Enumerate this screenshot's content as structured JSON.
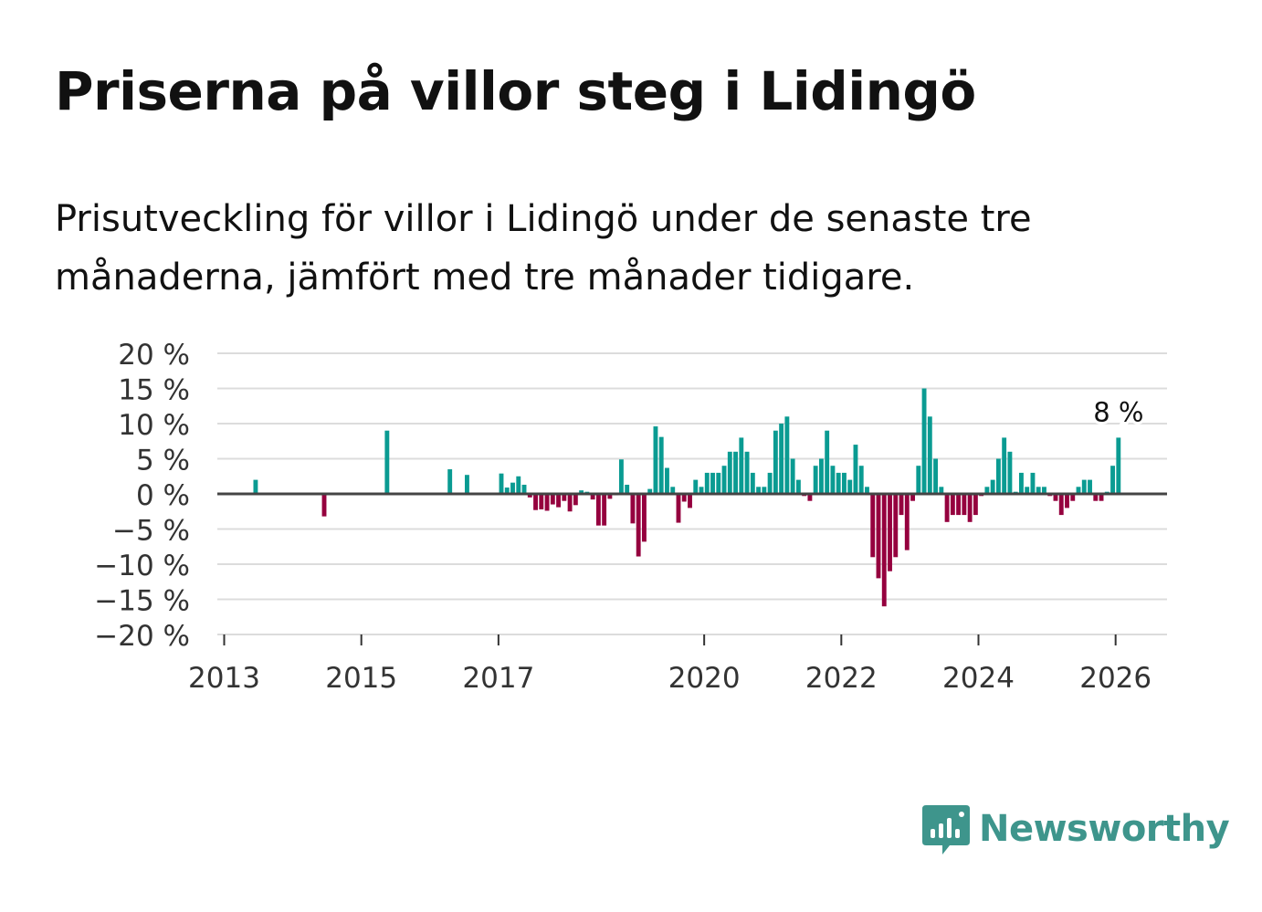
{
  "title": "Priserna på villor steg i Lidingö",
  "subtitle": "Prisutveckling för villor i Lidingö under de senaste tre månaderna, jämfört med tre månader tidigare.",
  "brand": {
    "name": "Newsworthy",
    "icon": "newsworthy-logo-icon",
    "color": "#3e958c"
  },
  "colors": {
    "positive": "#0a9b92",
    "negative": "#95003e",
    "grid": "#dcdcdc",
    "zero_line": "#444444"
  },
  "chart_data": {
    "type": "bar",
    "title": "Priserna på villor steg i Lidingö",
    "ylabel": "",
    "xlabel": "",
    "unit": "%",
    "ylim": [
      -20,
      20
    ],
    "yticks": [
      20,
      15,
      10,
      5,
      0,
      -5,
      -10,
      -15,
      -20
    ],
    "ytick_labels": [
      "20 %",
      "15 %",
      "10 %",
      "5 %",
      "0 %",
      "−5 %",
      "−10 %",
      "−15 %",
      "−20 %"
    ],
    "xlim": [
      2012.9,
      2026.75
    ],
    "xticks": [
      2013,
      2015,
      2017,
      2020,
      2022,
      2024,
      2026
    ],
    "xtick_labels": [
      "2013",
      "2015",
      "2017",
      "2020",
      "2022",
      "2024",
      "2026"
    ],
    "last_label": "8 %",
    "series": [
      {
        "name": "Prisutveckling",
        "x": [
          "2013-06",
          "2014-06",
          "2015-05",
          "2016-04",
          "2016-07",
          "2017-01",
          "2017-02",
          "2017-03",
          "2017-04",
          "2017-05",
          "2017-06",
          "2017-07",
          "2017-08",
          "2017-09",
          "2017-10",
          "2017-11",
          "2017-12",
          "2018-01",
          "2018-02",
          "2018-03",
          "2018-04",
          "2018-05",
          "2018-06",
          "2018-07",
          "2018-08",
          "2018-09",
          "2018-10",
          "2018-11",
          "2018-12",
          "2019-01",
          "2019-02",
          "2019-03",
          "2019-04",
          "2019-05",
          "2019-06",
          "2019-07",
          "2019-08",
          "2019-09",
          "2019-10",
          "2019-11",
          "2019-12",
          "2020-01",
          "2020-02",
          "2020-03",
          "2020-04",
          "2020-05",
          "2020-06",
          "2020-07",
          "2020-08",
          "2020-09",
          "2020-10",
          "2020-11",
          "2020-12",
          "2021-01",
          "2021-02",
          "2021-03",
          "2021-04",
          "2021-05",
          "2021-06",
          "2021-07",
          "2021-08",
          "2021-09",
          "2021-10",
          "2021-11",
          "2021-12",
          "2022-01",
          "2022-02",
          "2022-03",
          "2022-04",
          "2022-05",
          "2022-06",
          "2022-07",
          "2022-08",
          "2022-09",
          "2022-10",
          "2022-11",
          "2022-12",
          "2023-01",
          "2023-02",
          "2023-03",
          "2023-04",
          "2023-05",
          "2023-06",
          "2023-07",
          "2023-08",
          "2023-09",
          "2023-10",
          "2023-11",
          "2023-12",
          "2024-01",
          "2024-02",
          "2024-03",
          "2024-04",
          "2024-05",
          "2024-06",
          "2024-07",
          "2024-08",
          "2024-09",
          "2024-10",
          "2024-11",
          "2024-12",
          "2025-01",
          "2025-02",
          "2025-03",
          "2025-04",
          "2025-05",
          "2025-06",
          "2025-07",
          "2025-08",
          "2025-09",
          "2025-10",
          "2025-11",
          "2025-12",
          "2026-01"
        ],
        "values": [
          2.0,
          -3.2,
          9.0,
          3.5,
          2.7,
          2.9,
          0.9,
          1.6,
          2.5,
          1.3,
          -0.5,
          -2.3,
          -2.2,
          -2.4,
          -1.5,
          -1.9,
          -1.0,
          -2.5,
          -1.6,
          0.5,
          0.3,
          -0.8,
          -4.5,
          -4.5,
          -0.7,
          -0.2,
          4.9,
          1.3,
          -4.2,
          -8.9,
          -6.8,
          0.7,
          9.6,
          8.1,
          3.7,
          1.0,
          -4.1,
          -1.1,
          -2.0,
          2.0,
          1.0,
          3.0,
          3.0,
          3.0,
          4.0,
          6.0,
          6.0,
          8.0,
          6.0,
          3.0,
          1.0,
          1.0,
          3.0,
          9.0,
          10.0,
          11.0,
          5.0,
          2.0,
          -0.3,
          -1.0,
          4.0,
          5.0,
          9.0,
          4.0,
          3.0,
          3.0,
          2.0,
          7.0,
          4.0,
          1.0,
          -9.0,
          -12.0,
          -16.0,
          -11.0,
          -9.0,
          -3.0,
          -8.0,
          -1.0,
          4.0,
          15.0,
          11.0,
          5.0,
          1.0,
          -4.0,
          -3.0,
          -3.0,
          -3.0,
          -4.0,
          -3.0,
          -0.3,
          1.0,
          2.0,
          5.0,
          8.0,
          6.0,
          0.3,
          3.0,
          1.0,
          3.0,
          1.0,
          1.0,
          -0.3,
          -1.0,
          -3.0,
          -2.0,
          -1.0,
          1.0,
          2.0,
          2.0,
          -1.0,
          -1.0,
          0.3,
          4.0,
          8.0
        ]
      }
    ]
  }
}
